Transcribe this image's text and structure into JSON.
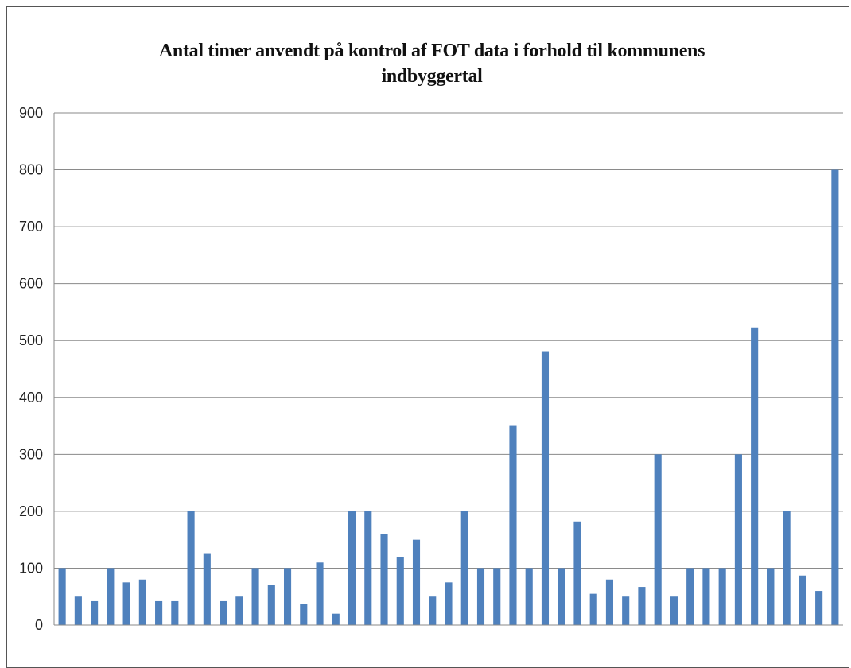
{
  "chart_data": {
    "type": "bar",
    "title_lines": [
      "Antal timer anvendt på kontrol af FOT data i forhold til kommunens",
      "indbyggertal"
    ],
    "xlabel": "",
    "ylabel": "",
    "ylim": [
      0,
      900
    ],
    "yticks": [
      "0",
      "100",
      "200",
      "300",
      "400",
      "500",
      "600",
      "700",
      "800",
      "900"
    ],
    "grid": true,
    "legend": "none",
    "bar_color": "#4f81bd",
    "values": [
      100,
      50,
      42,
      100,
      75,
      80,
      42,
      42,
      200,
      125,
      42,
      50,
      100,
      70,
      100,
      37,
      110,
      20,
      200,
      200,
      160,
      120,
      150,
      50,
      75,
      200,
      100,
      100,
      350,
      100,
      480,
      100,
      182,
      55,
      80,
      50,
      67,
      300,
      50,
      100,
      100,
      100,
      300,
      523,
      100,
      200,
      87,
      60,
      800
    ]
  }
}
